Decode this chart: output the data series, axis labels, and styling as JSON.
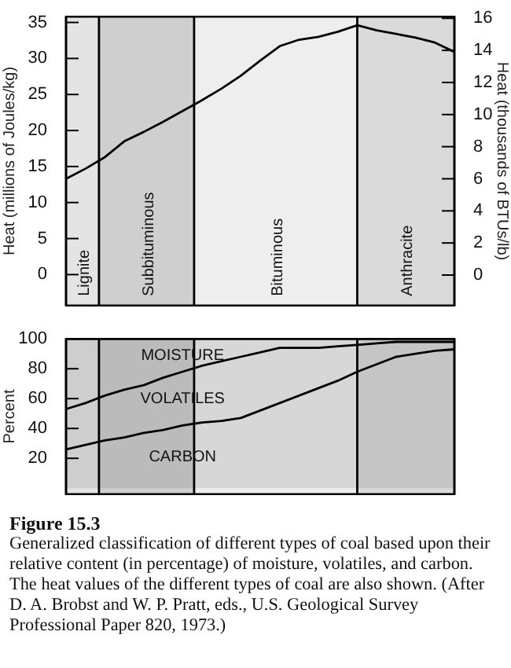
{
  "chart_data": [
    {
      "type": "line",
      "ylabel": "Heat (millions of Joules/kg)",
      "y2label": "Heat (thousands of BTUs/lb)",
      "ylim": [
        -4.3,
        35.8
      ],
      "yticks": [
        0,
        5,
        10,
        15,
        20,
        25,
        30,
        35
      ],
      "y2lim": [
        -1.9,
        16.1
      ],
      "y2ticks": [
        0,
        2,
        4,
        6,
        8,
        10,
        12,
        14,
        16
      ],
      "tick_labels": "y",
      "legend": false,
      "marker": "none",
      "categories": [
        null,
        null,
        null,
        null,
        null,
        null,
        null,
        null,
        null,
        null,
        null,
        null,
        null,
        null,
        null,
        null,
        null,
        null,
        null,
        null,
        null
      ],
      "annotations": [
        "Lignite",
        "Subbituminous",
        "Bituminous",
        "Anthracite"
      ],
      "series": [
        {
          "color": "#000000",
          "values": [
            13.3,
            14.7,
            16.3,
            18.5,
            19.8,
            21.2,
            22.7,
            24.2,
            25.8,
            27.6,
            29.7,
            31.7,
            32.6,
            33.0,
            33.7,
            34.6,
            33.9,
            33.4,
            32.9,
            32.2,
            30.9
          ]
        }
      ]
    },
    {
      "type": "area",
      "stacked": true,
      "ylabel": "Percent",
      "ylim": [
        -4,
        100
      ],
      "yticks": [
        20,
        40,
        60,
        80,
        100
      ],
      "tick_labels": "y",
      "legend": false,
      "marker": "none",
      "title": "Figure 15.3",
      "annotations": [
        "Generalized classification of different types of coal based upon their relative content (in percentage) of moisture, volatiles, and carbon. The heat values of the different types of coal are also shown. (After D. A. Brobst and W. P. Pratt, eds., U.S. Geological Survey Professional Paper 820, 1973.)"
      ],
      "categories": [
        null,
        null,
        null,
        null,
        null,
        null,
        null,
        null,
        null,
        null,
        null,
        null,
        null,
        null,
        null,
        null,
        null,
        null,
        null,
        null,
        null
      ],
      "series": [
        {
          "name": "CARBON",
          "color": "#000000",
          "values": [
            26,
            29,
            32,
            34,
            37,
            39,
            42,
            44,
            45,
            47,
            52,
            57,
            62,
            67,
            72,
            78,
            83,
            88,
            90,
            92,
            93
          ]
        },
        {
          "name": "VOLATILES",
          "color": "#000000",
          "values": [
            27,
            28,
            30,
            32,
            32,
            35,
            36,
            38,
            40,
            41,
            39,
            37,
            32,
            27,
            23,
            18,
            14,
            10,
            8,
            6,
            5
          ]
        },
        {
          "name": "MOISTURE",
          "color": "#000000",
          "values": [
            47,
            43,
            38,
            34,
            31,
            26,
            22,
            18,
            15,
            12,
            9,
            6,
            6,
            6,
            5,
            4,
            3,
            2,
            2,
            2,
            2
          ]
        }
      ]
    }
  ]
}
